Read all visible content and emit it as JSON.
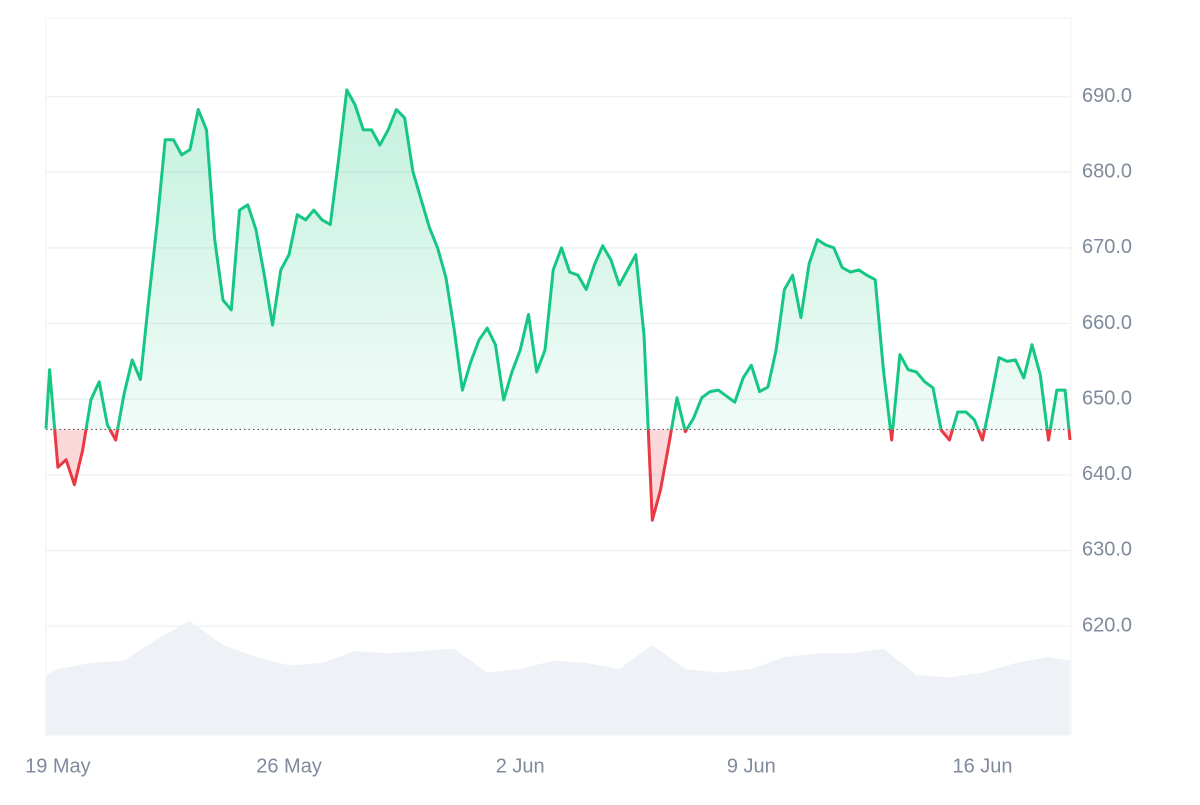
{
  "chart_data": {
    "type": "baseline-line",
    "x": [
      -0.36,
      -0.25,
      0,
      0.25,
      0.5,
      0.75,
      1,
      1.25,
      1.5,
      1.75,
      2,
      2.25,
      2.5,
      2.75,
      3,
      3.25,
      3.5,
      3.75,
      4,
      4.25,
      4.5,
      4.75,
      5,
      5.25,
      5.5,
      5.75,
      6,
      6.25,
      6.5,
      6.75,
      7,
      7.25,
      7.5,
      7.75,
      8,
      8.25,
      8.5,
      8.75,
      9,
      9.25,
      9.5,
      9.75,
      10,
      10.25,
      10.5,
      10.75,
      11,
      11.25,
      11.5,
      11.75,
      12,
      12.25,
      12.5,
      12.75,
      13,
      13.25,
      13.5,
      13.75,
      14,
      14.25,
      14.5,
      14.75,
      15,
      15.25,
      15.5,
      15.75,
      16,
      16.25,
      16.5,
      16.75,
      17,
      17.25,
      17.5,
      17.75,
      18,
      18.25,
      18.5,
      18.75,
      19,
      19.25,
      19.5,
      19.75,
      20,
      20.25,
      20.5,
      20.75,
      21,
      21.25,
      21.5,
      21.75,
      22,
      22.25,
      22.5,
      22.75,
      23,
      23.25,
      23.5,
      23.75,
      24,
      24.25,
      24.5,
      24.75,
      25,
      25.25,
      25.5,
      25.75,
      26,
      26.25,
      26.5,
      26.75,
      27,
      27.25,
      27.5,
      27.75,
      28,
      28.25,
      28.5,
      28.75,
      29,
      29.25,
      29.5,
      29.75,
      30,
      30.25,
      30.5,
      30.65
    ],
    "values": [
      646.1,
      653.9,
      641.0,
      642.0,
      638.7,
      643.3,
      649.9,
      652.3,
      646.6,
      644.6,
      650.6,
      655.2,
      652.6,
      663.1,
      673.1,
      684.3,
      684.3,
      682.3,
      683.0,
      688.3,
      685.6,
      671.1,
      663.1,
      661.8,
      675.0,
      675.7,
      672.4,
      666.4,
      659.8,
      667.1,
      669.1,
      674.4,
      673.7,
      675.0,
      673.7,
      673.1,
      681.7,
      690.9,
      688.9,
      685.6,
      685.6,
      683.6,
      685.6,
      688.3,
      687.2,
      680.1,
      676.4,
      672.7,
      670.0,
      666.1,
      659.2,
      651.2,
      654.9,
      657.8,
      659.4,
      657.2,
      649.9,
      653.6,
      656.5,
      661.2,
      653.6,
      656.5,
      667.1,
      670.0,
      666.8,
      666.4,
      664.5,
      667.8,
      670.3,
      668.4,
      665.1,
      667.1,
      669.1,
      658.5,
      634.0,
      638.0,
      644.0,
      650.2,
      645.7,
      647.5,
      650.2,
      651.0,
      651.2,
      650.4,
      649.6,
      652.8,
      654.5,
      651.0,
      651.6,
      656.5,
      664.5,
      666.4,
      660.8,
      667.9,
      671.1,
      670.4,
      670.0,
      667.4,
      666.8,
      667.1,
      666.4,
      665.8,
      653.9,
      644.6,
      655.9,
      653.9,
      653.6,
      652.3,
      651.5,
      645.9,
      644.6,
      648.3,
      648.3,
      647.3,
      644.6,
      649.9,
      655.5,
      655.0,
      655.2,
      652.8,
      657.2,
      653.2,
      644.6,
      651.2,
      651.2,
      644.6
    ],
    "baseline": 646.0,
    "up_color": "#16c784",
    "down_color": "#ea3943",
    "xlim": [
      -0.36,
      30.68
    ],
    "ylim": [
      605.6,
      700.4
    ],
    "yticks": [
      {
        "value": 620,
        "label": "620.0"
      },
      {
        "value": 630,
        "label": "630.0"
      },
      {
        "value": 640,
        "label": "640.0"
      },
      {
        "value": 650,
        "label": "650.0"
      },
      {
        "value": 660,
        "label": "660.0"
      },
      {
        "value": 670,
        "label": "670.0"
      },
      {
        "value": 680,
        "label": "680.0"
      },
      {
        "value": 690,
        "label": "690.0"
      }
    ],
    "xticks": [
      {
        "value": 0,
        "label": "19 May"
      },
      {
        "value": 7,
        "label": "26 May"
      },
      {
        "value": 14,
        "label": "2 Jun"
      },
      {
        "value": 21,
        "label": "9 Jun"
      },
      {
        "value": 28,
        "label": "16 Jun"
      }
    ],
    "grid": true,
    "volume": {
      "color": "#eef1f5",
      "lim": [
        0,
        120
      ],
      "x": [
        -0.36,
        0,
        1,
        2,
        3,
        4,
        5,
        6,
        7,
        8,
        9,
        10,
        11,
        12,
        13,
        14,
        15,
        16,
        17,
        18,
        19,
        20,
        21,
        22,
        23,
        24,
        25,
        26,
        27,
        28,
        29,
        30,
        30.65
      ],
      "values": [
        50,
        55,
        60,
        62,
        80,
        95,
        75,
        65,
        58,
        60,
        70,
        68,
        70,
        72,
        52,
        55,
        62,
        60,
        55,
        75,
        55,
        52,
        55,
        65,
        68,
        68,
        72,
        50,
        48,
        52,
        60,
        65,
        62
      ]
    }
  }
}
